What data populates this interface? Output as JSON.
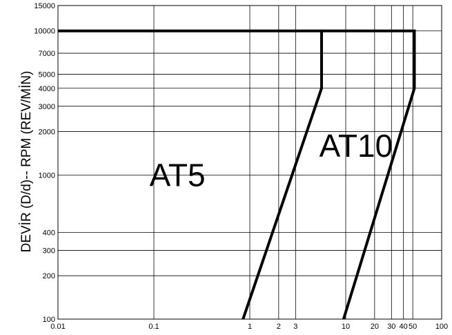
{
  "chart_data": {
    "type": "line",
    "title": "",
    "xlabel": "",
    "ylabel": "DEVİR (D/d)-- RPM (REV/MİN)",
    "x_scale": "log",
    "y_scale": "log",
    "xlim": [
      0.01,
      100
    ],
    "ylim": [
      100,
      15000
    ],
    "x_ticks": [
      0.01,
      0.1,
      1,
      2,
      3,
      10,
      20,
      30,
      40,
      50,
      100
    ],
    "x_tick_labels": [
      "0.01",
      "0.1",
      "1",
      "2",
      "3",
      "10",
      "20",
      "30",
      "40",
      "50",
      "100"
    ],
    "y_ticks": [
      100,
      200,
      300,
      400,
      1000,
      2000,
      3000,
      4000,
      5000,
      7000,
      10000,
      15000
    ],
    "y_tick_labels": [
      "100",
      "200",
      "300",
      "400",
      "1000",
      "2000",
      "3000",
      "4000",
      "5000",
      "7000",
      "10000",
      "15000"
    ],
    "grid": true,
    "legend": "none",
    "series": [
      {
        "name": "AT5",
        "x": [
          0.01,
          5.6,
          5.6,
          0.85
        ],
        "y": [
          10000,
          10000,
          4000,
          100
        ]
      },
      {
        "name": "AT10",
        "x": [
          5.6,
          52,
          52,
          9.5
        ],
        "y": [
          10000,
          10000,
          4000,
          100
        ]
      }
    ],
    "annotations": [
      {
        "text": "AT5",
        "x": 0.09,
        "y": 1000
      },
      {
        "text": "AT10",
        "x": 5.3,
        "y": 1600
      }
    ]
  }
}
